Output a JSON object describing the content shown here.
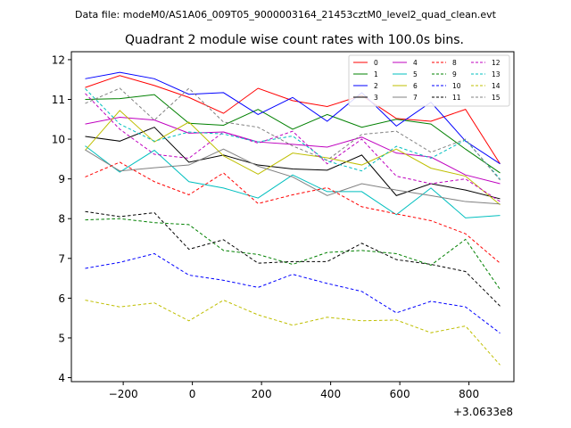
{
  "chart_data": {
    "type": "line",
    "suptitle": "Data file: modeM0/AS1A06_009T05_9000003164_21453cztM0_level2_quad_clean.evt",
    "title": "Quadrant 2 module wise count rates with 100.0s bins.",
    "xlabel": "",
    "ylabel": "",
    "x_offset_label": "+3.0633e8",
    "xlim": [
      -350,
      930
    ],
    "ylim": [
      3.9,
      12.2
    ],
    "xticks": [
      -200,
      0,
      200,
      400,
      600,
      800
    ],
    "xtick_labels": [
      "−200",
      "0",
      "200",
      "400",
      "600",
      "800"
    ],
    "yticks": [
      4,
      5,
      6,
      7,
      8,
      9,
      10,
      11,
      12
    ],
    "ytick_labels": [
      "4",
      "5",
      "6",
      "7",
      "8",
      "9",
      "10",
      "11",
      "12"
    ],
    "legend_position": "top-right",
    "x": [
      -310,
      -210,
      -110,
      -10,
      90,
      190,
      290,
      390,
      490,
      590,
      690,
      790,
      890
    ],
    "series": [
      {
        "name": "0",
        "color": "#ff0000",
        "dash": false,
        "values": [
          11.3,
          11.6,
          11.35,
          11.05,
          10.65,
          11.28,
          10.97,
          10.82,
          11.1,
          10.52,
          10.45,
          10.75,
          9.38
        ]
      },
      {
        "name": "1",
        "color": "#008000",
        "dash": false,
        "values": [
          11.0,
          11.02,
          11.12,
          10.4,
          10.35,
          10.75,
          10.25,
          10.62,
          10.3,
          10.5,
          10.38,
          9.75,
          9.15
        ]
      },
      {
        "name": "2",
        "color": "#0000ff",
        "dash": false,
        "values": [
          11.52,
          11.68,
          11.52,
          11.13,
          11.17,
          10.62,
          11.05,
          10.45,
          11.17,
          10.33,
          10.93,
          9.95,
          9.38
        ]
      },
      {
        "name": "3",
        "color": "#000000",
        "dash": false,
        "values": [
          10.07,
          9.95,
          10.3,
          9.42,
          9.6,
          9.35,
          9.25,
          9.22,
          9.6,
          8.58,
          8.88,
          8.72,
          8.5
        ]
      },
      {
        "name": "4",
        "color": "#bf00bf",
        "dash": false,
        "values": [
          10.38,
          10.55,
          10.48,
          10.15,
          10.18,
          9.93,
          9.87,
          9.8,
          10.05,
          9.65,
          9.55,
          9.1,
          8.88
        ]
      },
      {
        "name": "5",
        "color": "#00bfbf",
        "dash": false,
        "values": [
          9.83,
          9.17,
          9.72,
          8.93,
          8.77,
          8.52,
          9.1,
          8.68,
          8.68,
          8.1,
          8.77,
          8.02,
          8.08
        ]
      },
      {
        "name": "6",
        "color": "#bfbf00",
        "dash": false,
        "values": [
          9.72,
          10.72,
          9.93,
          10.43,
          9.58,
          9.12,
          9.65,
          9.53,
          9.35,
          9.75,
          9.27,
          9.07,
          8.35
        ]
      },
      {
        "name": "7",
        "color": "#808080",
        "dash": false,
        "values": [
          9.73,
          9.2,
          9.28,
          9.35,
          9.75,
          9.32,
          9.05,
          8.58,
          8.88,
          8.72,
          8.58,
          8.43,
          8.37
        ]
      },
      {
        "name": "8",
        "color": "#ff0000",
        "dash": true,
        "values": [
          9.05,
          9.42,
          8.93,
          8.6,
          9.15,
          8.38,
          8.6,
          8.78,
          8.3,
          8.12,
          7.95,
          7.62,
          6.88
        ]
      },
      {
        "name": "9",
        "color": "#008000",
        "dash": true,
        "values": [
          7.97,
          8.0,
          7.9,
          7.85,
          7.2,
          7.1,
          6.85,
          7.15,
          7.2,
          7.12,
          6.83,
          7.48,
          6.22
        ]
      },
      {
        "name": "10",
        "color": "#0000ff",
        "dash": true,
        "values": [
          6.75,
          6.9,
          7.12,
          6.58,
          6.45,
          6.27,
          6.6,
          6.37,
          6.17,
          5.63,
          5.92,
          5.78,
          5.12
        ]
      },
      {
        "name": "11",
        "color": "#000000",
        "dash": true,
        "values": [
          8.18,
          8.05,
          8.15,
          7.23,
          7.47,
          6.88,
          6.92,
          6.92,
          7.38,
          6.97,
          6.85,
          6.67,
          5.8
        ]
      },
      {
        "name": "12",
        "color": "#bf00bf",
        "dash": true,
        "values": [
          11.15,
          10.25,
          9.62,
          9.52,
          10.18,
          9.9,
          10.2,
          9.38,
          10.0,
          9.07,
          8.88,
          9.0,
          8.43
        ]
      },
      {
        "name": "13",
        "color": "#00bfbf",
        "dash": true,
        "values": [
          11.27,
          10.38,
          9.95,
          10.18,
          10.13,
          9.93,
          10.08,
          9.45,
          9.2,
          9.82,
          9.52,
          9.98,
          9.0
        ]
      },
      {
        "name": "14",
        "color": "#bfbf00",
        "dash": true,
        "values": [
          5.95,
          5.78,
          5.88,
          5.43,
          5.95,
          5.58,
          5.32,
          5.52,
          5.43,
          5.45,
          5.13,
          5.3,
          4.32
        ]
      },
      {
        "name": "15",
        "color": "#808080",
        "dash": true,
        "values": [
          10.9,
          11.28,
          10.48,
          11.28,
          10.43,
          10.3,
          9.83,
          9.47,
          10.12,
          10.2,
          9.67,
          10.0,
          8.97
        ]
      }
    ]
  }
}
